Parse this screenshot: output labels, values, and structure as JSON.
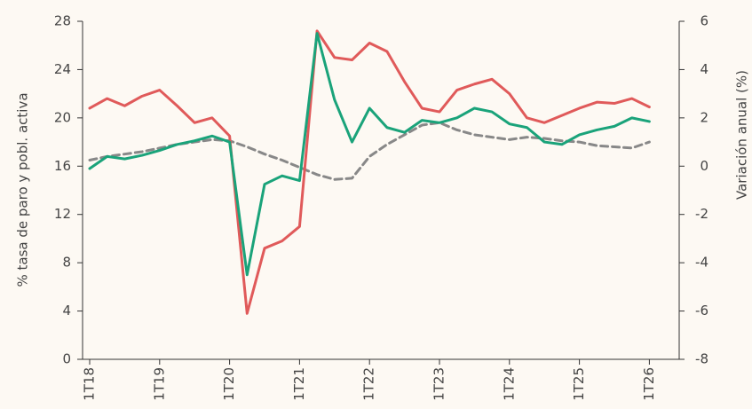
{
  "chart_data": {
    "type": "line",
    "y_label": "% tasa de paro y pobl. activa",
    "y2_label": "Variación anual (%)",
    "categories": [
      "1T18",
      null,
      null,
      null,
      "1T19",
      null,
      null,
      null,
      "1T20",
      null,
      null,
      null,
      "1T21",
      null,
      null,
      null,
      "1T22",
      null,
      null,
      null,
      "1T23",
      null,
      null,
      null,
      "1T24",
      null,
      null,
      null,
      "1T25",
      null,
      null,
      null,
      "1T26"
    ],
    "ylim": [
      0,
      28
    ],
    "yticks": [
      0,
      4,
      8,
      12,
      16,
      20,
      24,
      28
    ],
    "y2lim": [
      -8,
      6
    ],
    "y2ticks": [
      -8,
      -6,
      -4,
      -2,
      0,
      2,
      4,
      6
    ],
    "series": [
      {
        "color": "#888888",
        "dashed": true,
        "values": [
          16.5,
          16.8,
          17.0,
          17.2,
          17.5,
          17.8,
          18.0,
          18.2,
          18.1,
          17.6,
          17.0,
          16.5,
          15.9,
          15.3,
          14.9,
          15.0,
          16.8,
          17.8,
          18.6,
          19.4,
          19.6,
          19.0,
          18.6,
          18.4,
          18.2,
          18.4,
          18.3,
          18.1,
          18.0,
          17.7,
          17.6,
          17.5,
          18.0
        ]
      },
      {
        "color": "#e05a5a",
        "axis": "y2",
        "values": [
          2.4,
          2.8,
          2.5,
          2.9,
          3.15,
          2.5,
          1.8,
          2.0,
          1.25,
          -6.1,
          -3.4,
          -3.1,
          -2.5,
          5.6,
          4.5,
          4.4,
          5.1,
          4.75,
          3.5,
          2.4,
          2.25,
          3.15,
          3.4,
          3.6,
          3.0,
          2.0,
          1.8,
          2.1,
          2.4,
          2.65,
          2.6,
          2.8,
          2.45
        ]
      },
      {
        "color": "#1aa37a",
        "axis": "y2",
        "values": [
          -0.1,
          0.4,
          0.3,
          0.45,
          0.65,
          0.9,
          1.05,
          1.25,
          1.0,
          -4.5,
          -0.75,
          -0.4,
          -0.6,
          5.5,
          2.75,
          1.0,
          2.4,
          1.6,
          1.4,
          1.9,
          1.8,
          2.0,
          2.4,
          2.25,
          1.75,
          1.6,
          1.0,
          0.9,
          1.3,
          1.5,
          1.65,
          2.0,
          1.85
        ]
      }
    ]
  }
}
